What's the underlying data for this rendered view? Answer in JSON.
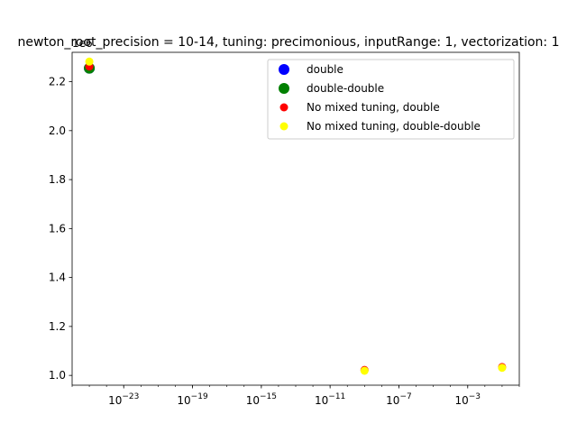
{
  "chart_data": {
    "type": "scatter",
    "title": "newton_root_precision = 10-14, tuning: precimonious, inputRange: 1, vectorization: 1",
    "xlabel": "",
    "ylabel": "",
    "x_scale": "log",
    "x_ticks": [
      {
        "value": 1e-23,
        "base": "10",
        "exp": "−23"
      },
      {
        "value": 1e-19,
        "base": "10",
        "exp": "−19"
      },
      {
        "value": 1e-15,
        "base": "10",
        "exp": "−15"
      },
      {
        "value": 1e-11,
        "base": "10",
        "exp": "−11"
      },
      {
        "value": 1e-07,
        "base": "10",
        "exp": "−7"
      },
      {
        "value": 0.001,
        "base": "10",
        "exp": "−3"
      }
    ],
    "y_ticks": [
      "1.0",
      "1.2",
      "1.4",
      "1.6",
      "1.8",
      "2.0",
      "2.2"
    ],
    "y_tick_values": [
      1.0,
      1.2,
      1.4,
      1.6,
      1.8,
      2.0,
      2.2
    ],
    "y_offset_label": "1e6",
    "xlim": [
      1e-26,
      1
    ],
    "ylim": [
      0.96,
      2.32
    ],
    "grid": false,
    "legend_position": "upper-right",
    "series": [
      {
        "name": "double",
        "color": "#0000ff",
        "marker_size": "large",
        "x": [
          1e-25
        ],
        "y": [
          2.255
        ]
      },
      {
        "name": "double-double",
        "color": "#008000",
        "marker_size": "large",
        "x": [
          1e-25
        ],
        "y": [
          2.255
        ]
      },
      {
        "name": "No mixed tuning, double",
        "color": "#ff0000",
        "marker_size": "small",
        "x": [
          1e-25,
          1e-09,
          0.1
        ],
        "y": [
          2.262,
          1.022,
          1.034
        ]
      },
      {
        "name": "No mixed tuning, double-double",
        "color": "#ffff00",
        "marker_size": "small",
        "x": [
          1e-25,
          1e-09,
          0.1
        ],
        "y": [
          2.282,
          1.019,
          1.031
        ]
      }
    ]
  }
}
